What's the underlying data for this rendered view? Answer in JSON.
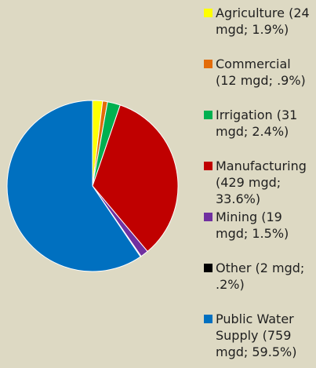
{
  "chart_data": {
    "type": "pie",
    "unit": "mgd",
    "slices": [
      {
        "name": "Agriculture",
        "value": 24,
        "percent": 1.9,
        "color": "#ffff00",
        "label": "Agriculture (24 mgd; 1.9%)"
      },
      {
        "name": "Commercial",
        "value": 12,
        "percent": 0.9,
        "color": "#e36c09",
        "label": "Commercial (12 mgd; .9%)"
      },
      {
        "name": "Irrigation",
        "value": 31,
        "percent": 2.4,
        "color": "#00b050",
        "label": "Irrigation (31 mgd; 2.4%)"
      },
      {
        "name": "Manufacturing",
        "value": 429,
        "percent": 33.6,
        "color": "#c00000",
        "label": "Manufacturing (429 mgd; 33.6%)"
      },
      {
        "name": "Mining",
        "value": 19,
        "percent": 1.5,
        "color": "#7030a0",
        "label": "Mining (19 mgd; 1.5%)"
      },
      {
        "name": "Other",
        "value": 2,
        "percent": 0.2,
        "color": "#000000",
        "label": "Other (2 mgd; .2%)"
      },
      {
        "name": "Public Water Supply",
        "value": 759,
        "percent": 59.5,
        "color": "#0070c0",
        "label": "Public Water Supply (759 mgd; 59.5%)"
      }
    ],
    "legend_position": "right"
  }
}
